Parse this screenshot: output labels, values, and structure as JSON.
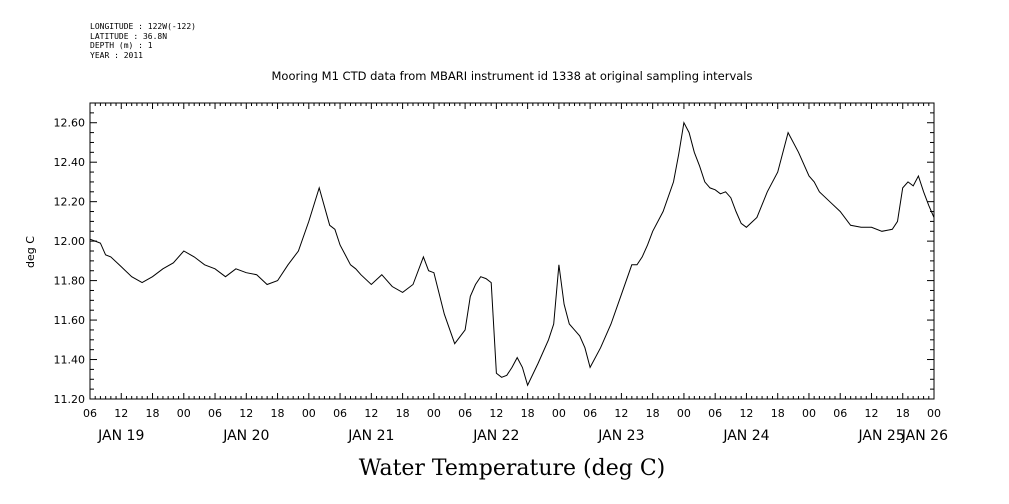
{
  "metadata": {
    "longitude": "LONGITUDE : 122W(-122)",
    "latitude": "LATITUDE : 36.8N",
    "depth": "DEPTH (m) : 1",
    "year": "YEAR : 2011"
  },
  "chart_data": {
    "type": "line",
    "title": "Mooring M1 CTD data from MBARI instrument id 1338 at original sampling intervals",
    "xlabel": "Water Temperature (deg C)",
    "ylabel": "deg C",
    "ylim": [
      11.2,
      12.7
    ],
    "y_ticks": [
      "11.20",
      "11.40",
      "11.60",
      "11.80",
      "12.00",
      "12.20",
      "12.40",
      "12.60"
    ],
    "xlim_hours": [
      6,
      168
    ],
    "x_tick_labels": [
      "06",
      "12",
      "18",
      "00",
      "06",
      "12",
      "18",
      "00",
      "06",
      "12",
      "18",
      "00",
      "06",
      "12",
      "18",
      "00",
      "06",
      "12",
      "18",
      "00",
      "06",
      "12",
      "18",
      "00",
      "06",
      "12",
      "18",
      "00"
    ],
    "day_labels": [
      "JAN 19",
      "JAN 20",
      "JAN 21",
      "JAN 22",
      "JAN 23",
      "JAN 24",
      "JAN 25",
      "JAN 26"
    ],
    "series": [
      {
        "line_color": "#000000",
        "x_hours": [
          6,
          7,
          8,
          9,
          10,
          12,
          14,
          16,
          18,
          20,
          22,
          24,
          26,
          28,
          30,
          32,
          34,
          36,
          38,
          40,
          42,
          44,
          46,
          48,
          50,
          52,
          53,
          54,
          55,
          56,
          57,
          58,
          60,
          62,
          64,
          66,
          68,
          70,
          71,
          72,
          74,
          76,
          78,
          79,
          80,
          81,
          82,
          83,
          84,
          85,
          86,
          87,
          88,
          89,
          90,
          92,
          94,
          95,
          96,
          97,
          98,
          99,
          100,
          101,
          102,
          104,
          106,
          108,
          110,
          111,
          112,
          113,
          114,
          116,
          118,
          119,
          120,
          121,
          122,
          123,
          124,
          125,
          126,
          127,
          128,
          129,
          130,
          131,
          132,
          134,
          136,
          138,
          140,
          142,
          144,
          145,
          146,
          148,
          150,
          152,
          154,
          156,
          158,
          160,
          161,
          162,
          163,
          164,
          165,
          166,
          167,
          168
        ],
        "values": [
          12.01,
          12.0,
          11.99,
          11.93,
          11.92,
          11.87,
          11.82,
          11.79,
          11.82,
          11.86,
          11.89,
          11.95,
          11.92,
          11.88,
          11.86,
          11.82,
          11.86,
          11.84,
          11.83,
          11.78,
          11.8,
          11.88,
          11.95,
          12.1,
          12.27,
          12.08,
          12.06,
          11.98,
          11.93,
          11.88,
          11.86,
          11.83,
          11.78,
          11.83,
          11.77,
          11.74,
          11.78,
          11.92,
          11.85,
          11.84,
          11.63,
          11.48,
          11.55,
          11.72,
          11.78,
          11.82,
          11.81,
          11.79,
          11.33,
          11.31,
          11.32,
          11.36,
          11.41,
          11.36,
          11.27,
          11.38,
          11.5,
          11.58,
          11.88,
          11.68,
          11.58,
          11.55,
          11.52,
          11.46,
          11.36,
          11.46,
          11.58,
          11.73,
          11.88,
          11.88,
          11.92,
          11.98,
          12.05,
          12.15,
          12.3,
          12.44,
          12.6,
          12.55,
          12.45,
          12.38,
          12.3,
          12.27,
          12.26,
          12.24,
          12.25,
          12.22,
          12.15,
          12.09,
          12.07,
          12.12,
          12.25,
          12.35,
          12.55,
          12.45,
          12.33,
          12.3,
          12.25,
          12.2,
          12.15,
          12.08,
          12.07,
          12.07,
          12.05,
          12.06,
          12.1,
          12.27,
          12.3,
          12.28,
          12.33,
          12.25,
          12.18,
          12.12
        ]
      }
    ]
  }
}
